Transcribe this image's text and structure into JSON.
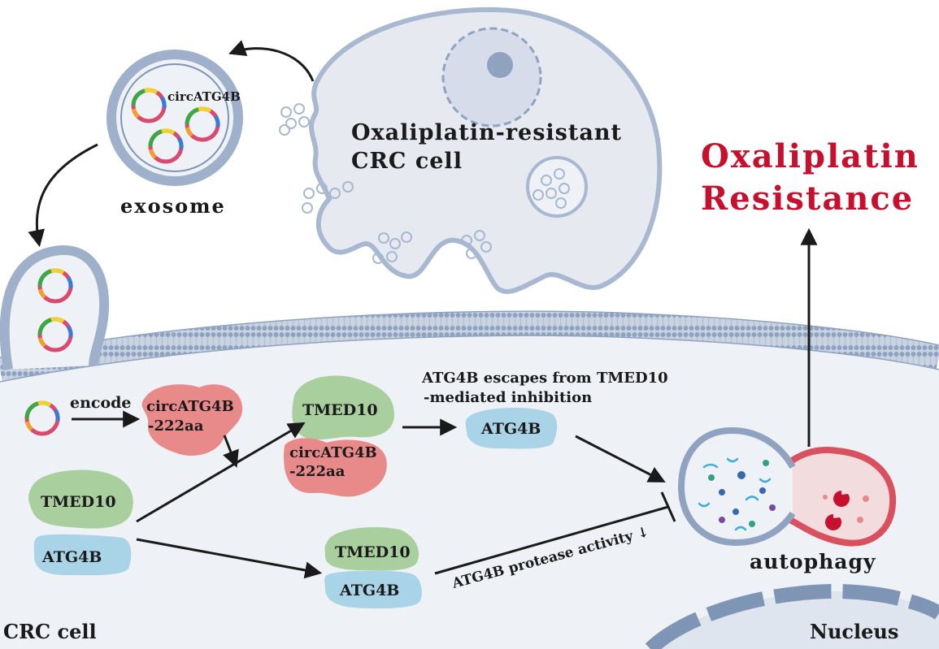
{
  "labels": {
    "circ_on_exosome": "circATG4B",
    "exosome": "exosome",
    "donor_cell_line1": "Oxaliplatin-resistant",
    "donor_cell_line2": "CRC cell",
    "outcome_line1": "Oxaliplatin",
    "outcome_line2": "Resistance",
    "encode": "encode",
    "circ_peptide_line1": "circATG4B",
    "circ_peptide_line2": "-222aa",
    "tmed10_top": "TMED10",
    "circ_peptide2_line1": "circATG4B",
    "circ_peptide2_line2": "-222aa",
    "escape_line1": "ATG4B escapes from TMED10",
    "escape_line2": "-mediated inhibition",
    "atg4b_free": "ATG4B",
    "tmed10_left": "TMED10",
    "atg4b_left": "ATG4B",
    "tmed10_bottom": "TMED10",
    "atg4b_bottom": "ATG4B",
    "protease_text": "ATG4B protease activity ↓",
    "autophagy": "autophagy",
    "recipient_cell": "CRC cell",
    "nucleus": "Nucleus"
  },
  "colors": {
    "cell_fill": "#e6e9f0",
    "membrane": "#a8b8d0",
    "membrane_dark": "#7f95b5",
    "green_protein": "#a9cf9f",
    "red_protein": "#e8898a",
    "blue_protein": "#a9d3e6",
    "title_red": "#c8102e",
    "nucleus": "#7f95b5"
  }
}
